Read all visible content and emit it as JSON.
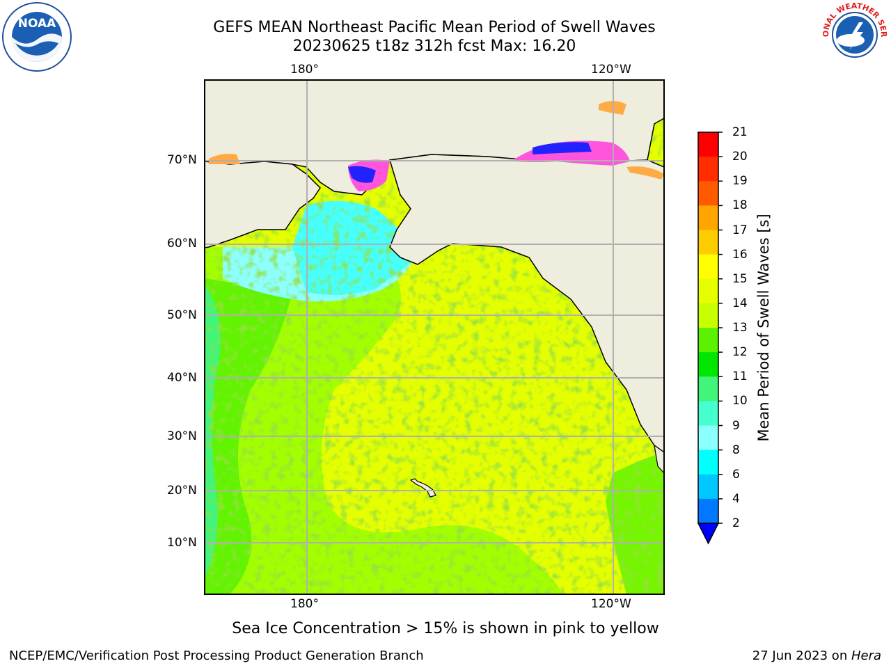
{
  "title": {
    "line1": "GEFS MEAN Northeast Pacific Mean Period of Swell Waves",
    "line2": "20230625 t18z 312h fcst   Max: 16.20"
  },
  "logos": {
    "left": {
      "name": "noaa-logo",
      "text": "NOAA"
    },
    "right": {
      "name": "nws-logo",
      "text": "NATIONAL WEATHER SERVICE"
    }
  },
  "map": {
    "top_lon_labels": [
      "180°",
      "120°W"
    ],
    "bottom_lon_labels": [
      "180°",
      "120°W"
    ],
    "lat_labels": [
      "70°N",
      "60°N",
      "50°N",
      "40°N",
      "30°N",
      "20°N",
      "10°N"
    ],
    "colors": {
      "land": "#efedde",
      "coast": "#000000",
      "grid": "#b0b0b0"
    }
  },
  "colorbar": {
    "label": "Mean Period of Swell Waves [s]",
    "ticks": [
      "21",
      "20",
      "19",
      "18",
      "17",
      "16",
      "15",
      "14",
      "13",
      "12",
      "11",
      "10",
      "9",
      "8",
      "6",
      "4",
      "2"
    ],
    "colors": [
      "#ff0000",
      "#ff2d00",
      "#ff5a00",
      "#ff7f00",
      "#ffa500",
      "#ffcc00",
      "#ffff00",
      "#e6ff00",
      "#c8ff00",
      "#96ff00",
      "#5af200",
      "#00e600",
      "#41f47a",
      "#46ffcf",
      "#8cffff",
      "#46ffff",
      "#00ffff",
      "#00c8ff",
      "#0078ff"
    ],
    "extend_color": "#0000ff"
  },
  "ice_note": "Sea Ice Concentration > 15% is shown in pink to yellow",
  "footer": {
    "left": "NCEP/EMC/Verification Post Processing Product Generation Branch",
    "right_date": "27 Jun 2023 on ",
    "right_host": "Hera"
  }
}
